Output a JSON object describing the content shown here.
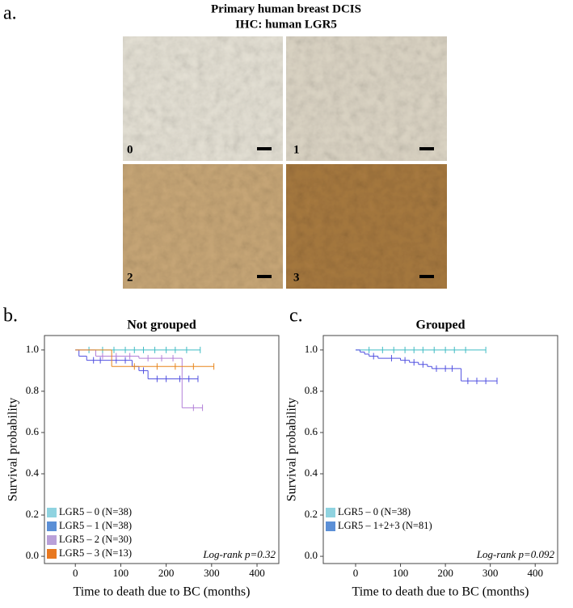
{
  "panel_a": {
    "label": "a.",
    "title": [
      "Primary human breast DCIS",
      "IHC: human LGR5"
    ],
    "image_labels": [
      "0",
      "1",
      "2",
      "3"
    ]
  },
  "chart_data": [
    {
      "type": "step",
      "panel_label": "b.",
      "title": "Not grouped",
      "y_label": "Survival probability",
      "x_label": "Time to death due to BC (months)",
      "annotation": "Log-rank p=0.32",
      "xlim": [
        -68,
        448
      ],
      "ylim": [
        -0.035,
        1.07
      ],
      "xticks": [
        0,
        100,
        200,
        300,
        400
      ],
      "yticks": [
        {
          "value": 0,
          "label": "0.0"
        },
        {
          "value": 0.2,
          "label": "0.2"
        },
        {
          "value": 0.4,
          "label": "0.4"
        },
        {
          "value": 0.6,
          "label": "0.6"
        },
        {
          "value": 0.8,
          "label": "0.8"
        },
        {
          "value": 1,
          "label": "1.0"
        }
      ],
      "series": [
        {
          "name": "LGR5 – 0 (N=38)",
          "color": "#3fbcc4",
          "legend_color": "#8fd3e0",
          "x": [
            0,
            275
          ],
          "values": [
            1,
            1
          ],
          "censored": [
            30,
            60,
            85,
            110,
            130,
            150,
            175,
            200,
            220,
            245,
            275
          ]
        },
        {
          "name": "LGR5 – 1 (N=38)",
          "color": "#5050e0",
          "legend_color": "#5b8fd6",
          "x": [
            0,
            8,
            25,
            125,
            140,
            160,
            270
          ],
          "values": [
            1,
            0.97,
            0.95,
            0.92,
            0.9,
            0.86,
            0.86
          ],
          "censored": [
            40,
            55,
            90,
            110,
            150,
            180,
            200,
            230,
            250,
            270
          ]
        },
        {
          "name": "LGR5 – 2 (N=30)",
          "color": "#b27fd8",
          "legend_color": "#b9a0d8",
          "x": [
            0,
            45,
            140,
            235,
            280
          ],
          "values": [
            1,
            0.97,
            0.96,
            0.72,
            0.72
          ],
          "censored": [
            60,
            90,
            120,
            160,
            190,
            215,
            260,
            280
          ]
        },
        {
          "name": "LGR5 – 3 (N=13)",
          "color": "#e8861c",
          "legend_color": "#e87820",
          "x": [
            0,
            80,
            305
          ],
          "values": [
            1,
            0.92,
            0.92
          ],
          "censored": [
            130,
            180,
            220,
            260,
            305
          ]
        }
      ]
    },
    {
      "type": "step",
      "panel_label": "c.",
      "title": "Grouped",
      "y_label": "Survival probability",
      "x_label": "Time to death due to BC (months)",
      "annotation": "Log-rank p=0.092",
      "xlim": [
        -72,
        450
      ],
      "ylim": [
        -0.035,
        1.07
      ],
      "xticks": [
        0,
        100,
        200,
        300,
        400
      ],
      "yticks": [
        {
          "value": 0,
          "label": "0.0"
        },
        {
          "value": 0.2,
          "label": "0.2"
        },
        {
          "value": 0.4,
          "label": "0.4"
        },
        {
          "value": 0.6,
          "label": "0.6"
        },
        {
          "value": 0.8,
          "label": "0.8"
        },
        {
          "value": 1,
          "label": "1.0"
        }
      ],
      "series": [
        {
          "name": "LGR5 – 0 (N=38)",
          "color": "#3fbcc4",
          "legend_color": "#8fd3e0",
          "x": [
            0,
            290
          ],
          "values": [
            1,
            1
          ],
          "censored": [
            30,
            60,
            85,
            110,
            130,
            150,
            175,
            200,
            220,
            245,
            290
          ]
        },
        {
          "name": "LGR5 – 1+2+3 (N=81)",
          "color": "#5050e0",
          "legend_color": "#5b8fd6",
          "x": [
            0,
            10,
            20,
            30,
            50,
            100,
            120,
            140,
            160,
            170,
            235,
            315
          ],
          "values": [
            1,
            0.99,
            0.98,
            0.97,
            0.96,
            0.95,
            0.94,
            0.93,
            0.92,
            0.91,
            0.85,
            0.85
          ],
          "censored": [
            40,
            80,
            110,
            130,
            150,
            180,
            200,
            215,
            250,
            270,
            290,
            315
          ]
        }
      ]
    }
  ]
}
